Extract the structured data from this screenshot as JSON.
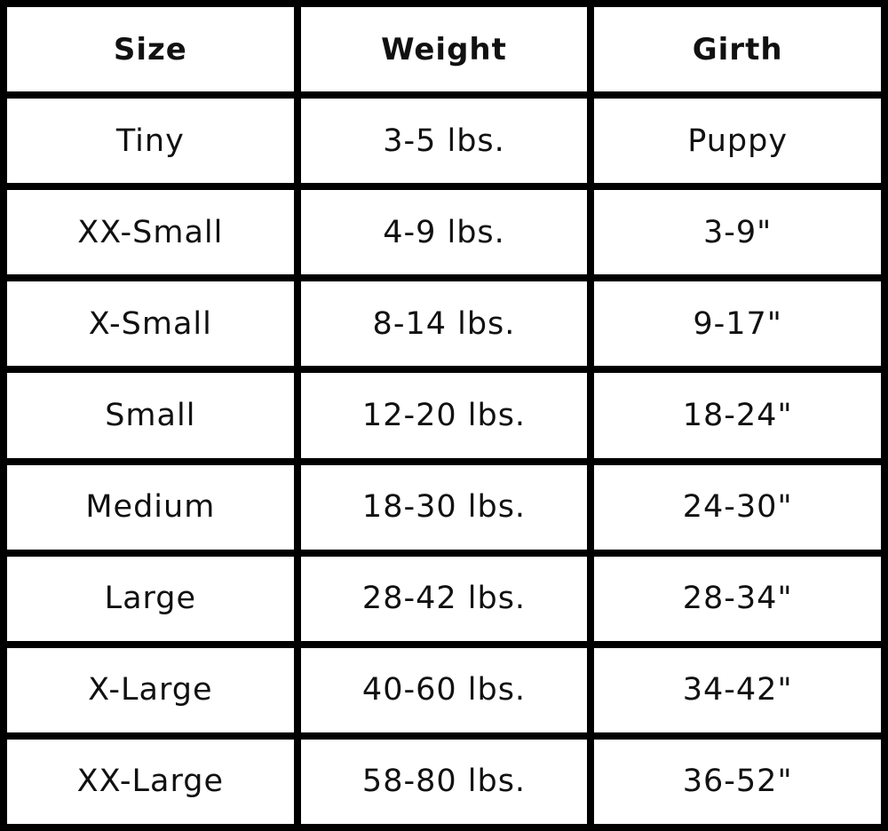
{
  "headers": [
    "Size",
    "Weight",
    "Girth"
  ],
  "rows": [
    [
      "Tiny",
      "3-5 lbs.",
      "Puppy"
    ],
    [
      "XX-Small",
      "4-9 lbs.",
      "3-9\""
    ],
    [
      "X-Small",
      "8-14 lbs.",
      "9-17\""
    ],
    [
      "Small",
      "12-20 lbs.",
      "18-24\""
    ],
    [
      "Medium",
      "18-30 lbs.",
      "24-30\""
    ],
    [
      "Large",
      "28-42 lbs.",
      "28-34\""
    ],
    [
      "X-Large",
      "40-60 lbs.",
      "34-42\""
    ],
    [
      "XX-Large",
      "58-80 lbs.",
      "36-52\""
    ]
  ]
}
